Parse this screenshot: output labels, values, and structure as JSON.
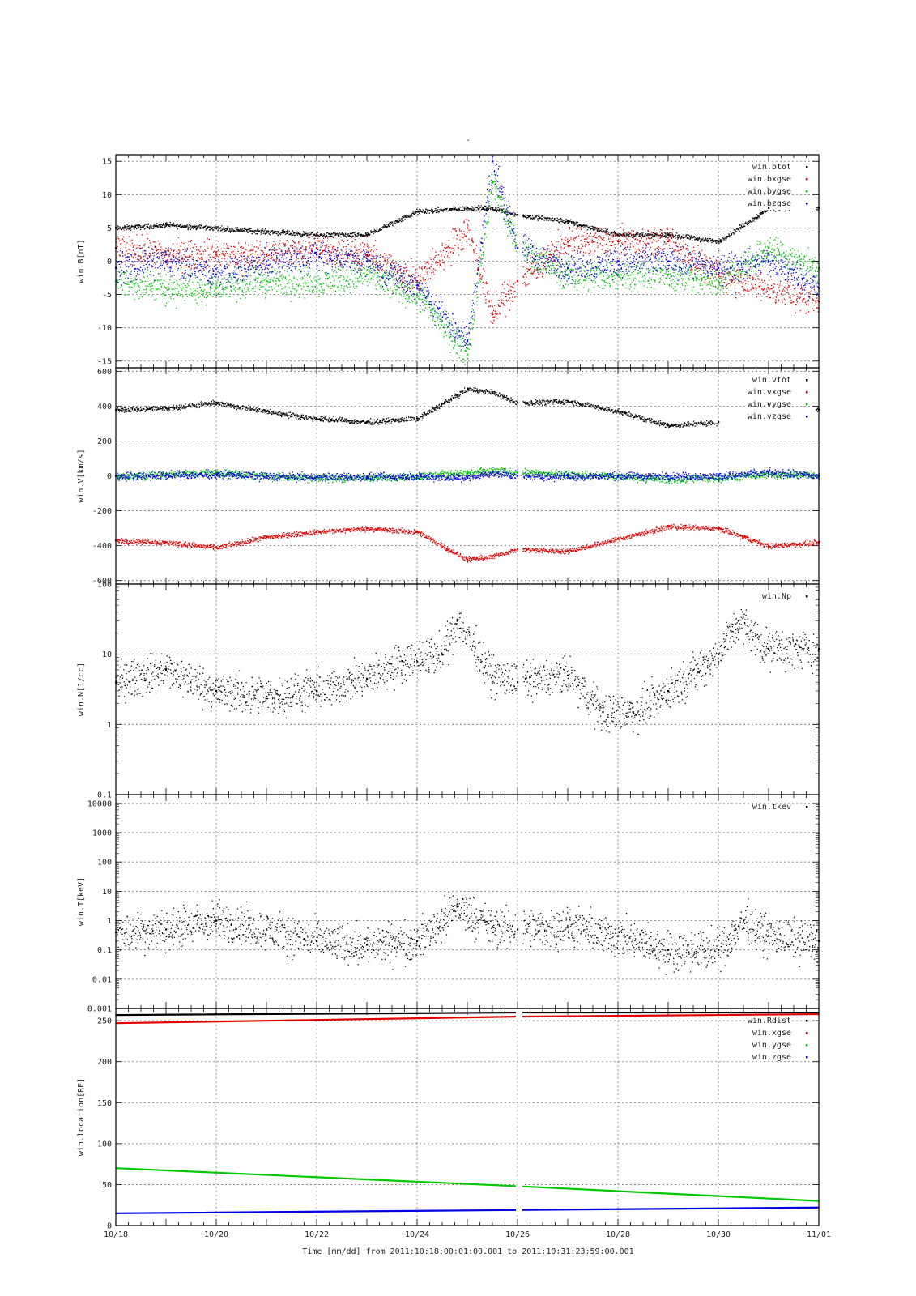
{
  "figure": {
    "title": "-",
    "x_axis_title": "Time [mm/dd]  from 2011:10:18:00:01:00.001  to  2011:10:31:23:59:00.001",
    "x_tick_labels": [
      "10/18",
      "10/20",
      "10/22",
      "10/24",
      "10/26",
      "10/28",
      "10/30",
      "11/01"
    ],
    "colors": {
      "black": "#000000",
      "red": "#e00000",
      "green": "#00c800",
      "blue": "#0000e0"
    }
  },
  "chart_data": [
    {
      "type": "scatter",
      "ylabel": "win.B[nT]",
      "ylim": [
        -16,
        16
      ],
      "y_ticks": [
        -15,
        -10,
        -5,
        0,
        5,
        10,
        15
      ],
      "grid": true,
      "legend_position": "top-right",
      "x": [
        "10/18",
        "10/19",
        "10/20",
        "10/21",
        "10/22",
        "10/23",
        "10/24",
        "10/25",
        "10/25.5",
        "10/26",
        "10/27",
        "10/28",
        "10/29",
        "10/30",
        "10/31",
        "11/01"
      ],
      "series": [
        {
          "name": "win.btot",
          "color": "#000000",
          "values": [
            5,
            5.5,
            5,
            4.5,
            4,
            4,
            7.5,
            8,
            8,
            7,
            6,
            4,
            4,
            3,
            8,
            8
          ]
        },
        {
          "name": "win.bxgse",
          "color": "#e00000",
          "values": [
            2,
            1,
            1,
            1,
            2,
            1,
            -3,
            5,
            -8,
            -3,
            3,
            3,
            3,
            -2,
            -4,
            -6
          ]
        },
        {
          "name": "win.bygse",
          "color": "#00c800",
          "values": [
            -3,
            -4,
            -4,
            -3,
            -3,
            -2,
            -5,
            -14,
            12,
            2,
            -2,
            -2,
            -2,
            -3,
            2,
            -1
          ]
        },
        {
          "name": "win.bzgse",
          "color": "#0000e0",
          "values": [
            -1,
            0,
            -2,
            0,
            1,
            0,
            -4,
            -12,
            15,
            2,
            -1,
            0,
            0,
            -1,
            0,
            -4
          ]
        }
      ]
    },
    {
      "type": "scatter",
      "ylabel": "win.V[km/s]",
      "ylim": [
        -620,
        620
      ],
      "y_ticks": [
        -600,
        -400,
        -200,
        0,
        200,
        400,
        600
      ],
      "grid": true,
      "legend_position": "top-right",
      "x": [
        "10/18",
        "10/19",
        "10/20",
        "10/21",
        "10/22",
        "10/23",
        "10/24",
        "10/25",
        "10/25.5",
        "10/26",
        "10/27",
        "10/28",
        "10/29",
        "10/30",
        "10/31",
        "11/01"
      ],
      "series": [
        {
          "name": "win.vtot",
          "color": "#000000",
          "values": [
            380,
            390,
            420,
            370,
            330,
            310,
            330,
            500,
            480,
            420,
            430,
            370,
            290,
            310,
            410,
            380
          ]
        },
        {
          "name": "win.vxgse",
          "color": "#e00000",
          "values": [
            -370,
            -380,
            -410,
            -350,
            -320,
            -300,
            -320,
            -480,
            -460,
            -420,
            -430,
            -360,
            -290,
            -300,
            -400,
            -380
          ]
        },
        {
          "name": "win.vygse",
          "color": "#00c800",
          "values": [
            0,
            10,
            20,
            0,
            -10,
            -10,
            0,
            20,
            30,
            20,
            10,
            0,
            -20,
            -10,
            10,
            5
          ]
        },
        {
          "name": "win.vzgse",
          "color": "#0000e0",
          "values": [
            0,
            5,
            10,
            0,
            -5,
            -5,
            0,
            -10,
            20,
            0,
            0,
            0,
            0,
            0,
            20,
            0
          ]
        }
      ]
    },
    {
      "type": "scatter",
      "ylabel": "win.N[1/cc]",
      "yscale": "log",
      "ylim": [
        0.1,
        100
      ],
      "y_ticks": [
        0.1,
        1,
        10,
        100
      ],
      "grid": true,
      "legend_position": "top-right",
      "x": [
        "10/18",
        "10/19",
        "10/20",
        "10/21",
        "10/22",
        "10/23",
        "10/23.7",
        "10/24.5",
        "10/24.8",
        "10/25.5",
        "10/26",
        "10/27",
        "10/27.7",
        "10/28.3",
        "10/29",
        "10/30",
        "10/30.4",
        "10/31",
        "11/01"
      ],
      "series": [
        {
          "name": "win.Np",
          "color": "#000000",
          "values": [
            4,
            6,
            3,
            2.5,
            3,
            4.5,
            8,
            10,
            30,
            5,
            4,
            5,
            1.5,
            1.5,
            3,
            10,
            30,
            12,
            12
          ]
        }
      ]
    },
    {
      "type": "scatter",
      "ylabel": "win.T[keV]",
      "yscale": "log",
      "ylim": [
        0.001,
        20000
      ],
      "y_ticks": [
        0.001,
        0.01,
        0.1,
        1,
        10,
        100,
        1000,
        10000
      ],
      "y_tick_labels": [
        "0.001",
        "0.01",
        "0.1",
        "1",
        "10",
        "100",
        "1000",
        "10000"
      ],
      "grid": true,
      "legend_position": "top-right",
      "x": [
        "10/18",
        "10/19",
        "10/20",
        "10/21",
        "10/22",
        "10/23",
        "10/24",
        "10/24.8",
        "10/25.5",
        "10/26",
        "10/27",
        "10/28",
        "10/29",
        "10/30",
        "10/30.5",
        "10/31",
        "11/01"
      ],
      "series": [
        {
          "name": "win.tkev",
          "color": "#000000",
          "values": [
            0.4,
            0.5,
            1,
            0.5,
            0.2,
            0.15,
            0.2,
            3,
            0.6,
            0.5,
            0.6,
            0.3,
            0.1,
            0.1,
            1,
            0.3,
            0.2
          ]
        }
      ]
    },
    {
      "type": "line",
      "ylabel": "win.location[RE]",
      "ylim": [
        0,
        265
      ],
      "y_ticks": [
        0,
        50,
        100,
        150,
        200,
        250
      ],
      "grid": true,
      "legend_position": "top-right",
      "x": [
        "10/18",
        "10/26",
        "11/01"
      ],
      "series": [
        {
          "name": "win.Rdist",
          "color": "#000000",
          "values": [
            257,
            260,
            260
          ]
        },
        {
          "name": "win.xgse",
          "color": "#e00000",
          "values": [
            247,
            255,
            258
          ]
        },
        {
          "name": "win.ygse",
          "color": "#00c800",
          "values": [
            70,
            48,
            30
          ]
        },
        {
          "name": "win.zgse",
          "color": "#0000e0",
          "values": [
            15,
            19,
            22
          ]
        }
      ]
    }
  ]
}
